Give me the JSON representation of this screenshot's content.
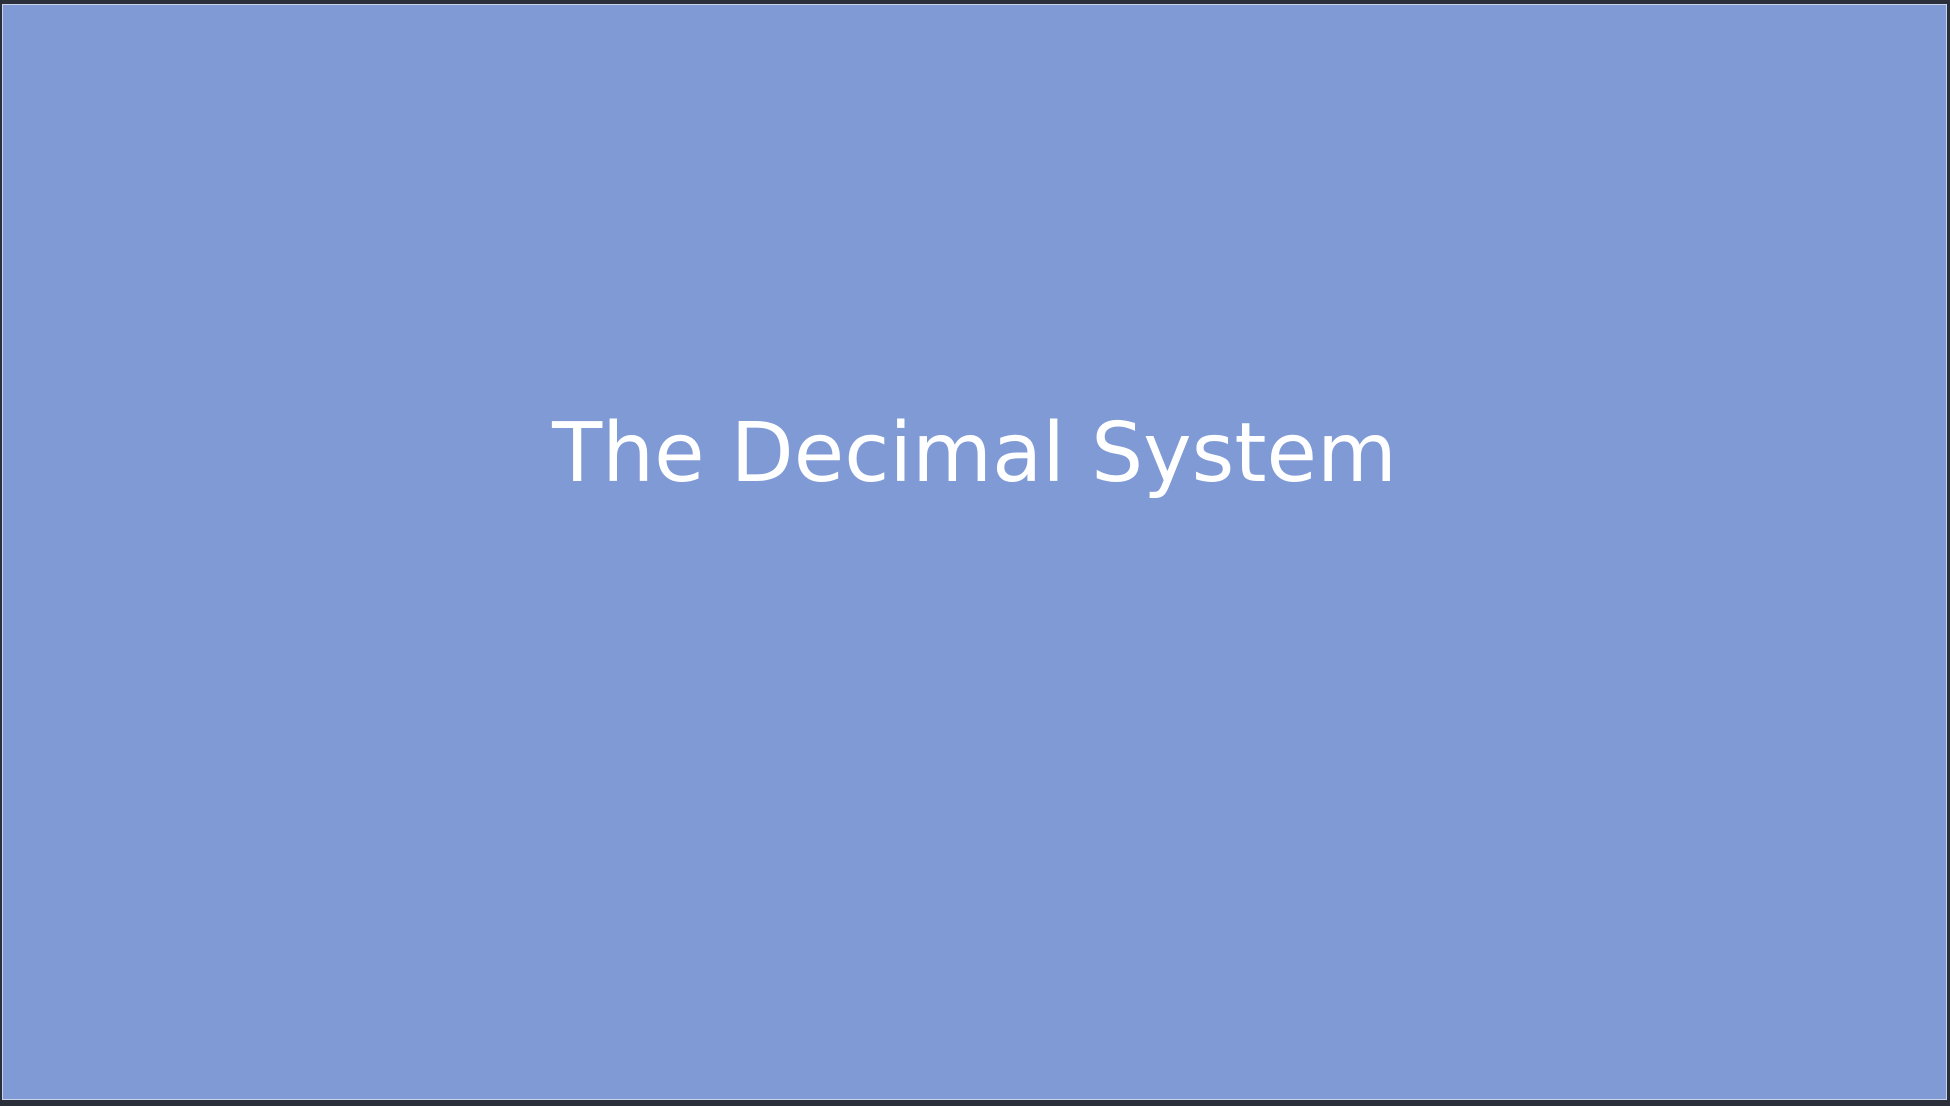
{
  "slide": {
    "title": "The Decimal System",
    "background_color": "#7f9ad5",
    "text_color": "#ffffff"
  }
}
